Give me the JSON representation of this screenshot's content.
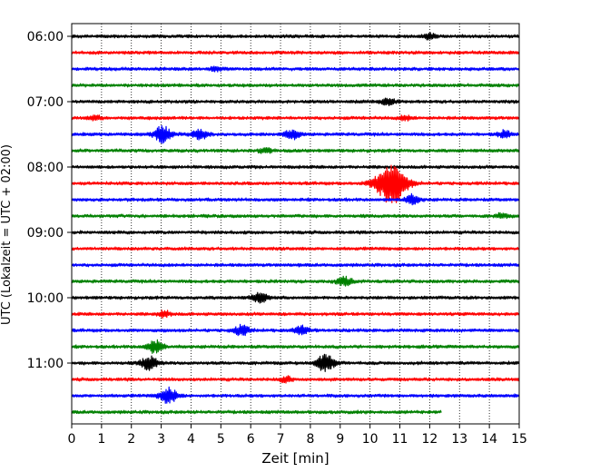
{
  "chart_data": {
    "type": "line",
    "title": "",
    "xlabel": "Zeit  [min]",
    "ylabel": "UTC (Lokalzeit = UTC + 02:00)",
    "xlim": [
      0,
      15
    ],
    "x_ticks": [
      "0",
      "1",
      "2",
      "3",
      "4",
      "5",
      "6",
      "7",
      "8",
      "9",
      "10",
      "11",
      "12",
      "13",
      "14",
      "15"
    ],
    "y_ticks": [
      "06:00",
      "07:00",
      "08:00",
      "09:00",
      "10:00",
      "11:00"
    ],
    "grid": "vertical dotted",
    "legend": "none",
    "trace_colors": [
      "#000000",
      "#ff0000",
      "#0000ff",
      "#008000"
    ],
    "trace_minutes_per_line": 15,
    "traces": [
      {
        "start": "06:00",
        "end_minute": 15,
        "color": "#000000",
        "events": [
          [
            12,
            0.5
          ]
        ]
      },
      {
        "start": "06:15",
        "end_minute": 15,
        "color": "#ff0000",
        "events": []
      },
      {
        "start": "06:30",
        "end_minute": 15,
        "color": "#0000ff",
        "events": [
          [
            4.8,
            0.4
          ]
        ]
      },
      {
        "start": "06:45",
        "end_minute": 15,
        "color": "#008000",
        "events": []
      },
      {
        "start": "07:00",
        "end_minute": 15,
        "color": "#000000",
        "events": [
          [
            10.6,
            0.6
          ]
        ]
      },
      {
        "start": "07:15",
        "end_minute": 15,
        "color": "#ff0000",
        "events": [
          [
            0.8,
            0.4
          ],
          [
            11.2,
            0.4
          ]
        ]
      },
      {
        "start": "07:30",
        "end_minute": 15,
        "color": "#0000ff",
        "events": [
          [
            3.05,
            1.4
          ],
          [
            4.3,
            0.9
          ],
          [
            7.4,
            0.8
          ],
          [
            14.5,
            0.6
          ]
        ]
      },
      {
        "start": "07:45",
        "end_minute": 15,
        "color": "#008000",
        "events": [
          [
            6.5,
            0.5
          ]
        ]
      },
      {
        "start": "08:00",
        "end_minute": 15,
        "color": "#000000",
        "events": []
      },
      {
        "start": "08:15",
        "end_minute": 15,
        "color": "#ff0000",
        "events": [
          [
            10.7,
            3.8
          ]
        ]
      },
      {
        "start": "08:30",
        "end_minute": 15,
        "color": "#0000ff",
        "events": [
          [
            11.4,
            0.8
          ]
        ]
      },
      {
        "start": "08:45",
        "end_minute": 15,
        "color": "#008000",
        "events": [
          [
            14.4,
            0.4
          ]
        ]
      },
      {
        "start": "09:00",
        "end_minute": 15,
        "color": "#000000",
        "events": []
      },
      {
        "start": "09:15",
        "end_minute": 15,
        "color": "#ff0000",
        "events": []
      },
      {
        "start": "09:30",
        "end_minute": 15,
        "color": "#0000ff",
        "events": []
      },
      {
        "start": "09:45",
        "end_minute": 15,
        "color": "#008000",
        "events": [
          [
            9.15,
            0.8
          ]
        ]
      },
      {
        "start": "10:00",
        "end_minute": 15,
        "color": "#000000",
        "events": [
          [
            6.3,
            0.9
          ]
        ]
      },
      {
        "start": "10:15",
        "end_minute": 15,
        "color": "#ff0000",
        "events": [
          [
            3.1,
            0.5
          ]
        ]
      },
      {
        "start": "10:30",
        "end_minute": 15,
        "color": "#0000ff",
        "events": [
          [
            5.7,
            0.9
          ],
          [
            7.7,
            0.8
          ]
        ]
      },
      {
        "start": "10:45",
        "end_minute": 15,
        "color": "#008000",
        "events": [
          [
            2.8,
            1.2
          ]
        ]
      },
      {
        "start": "11:00",
        "end_minute": 15,
        "color": "#000000",
        "events": [
          [
            2.6,
            1.2
          ],
          [
            8.5,
            1.5
          ]
        ]
      },
      {
        "start": "11:15",
        "end_minute": 15,
        "color": "#ff0000",
        "events": [
          [
            7.2,
            0.5
          ]
        ]
      },
      {
        "start": "11:30",
        "end_minute": 15,
        "color": "#0000ff",
        "events": [
          [
            3.25,
            1.4
          ]
        ]
      },
      {
        "start": "11:45",
        "end_minute": 12.4,
        "color": "#008000",
        "events": []
      }
    ]
  }
}
